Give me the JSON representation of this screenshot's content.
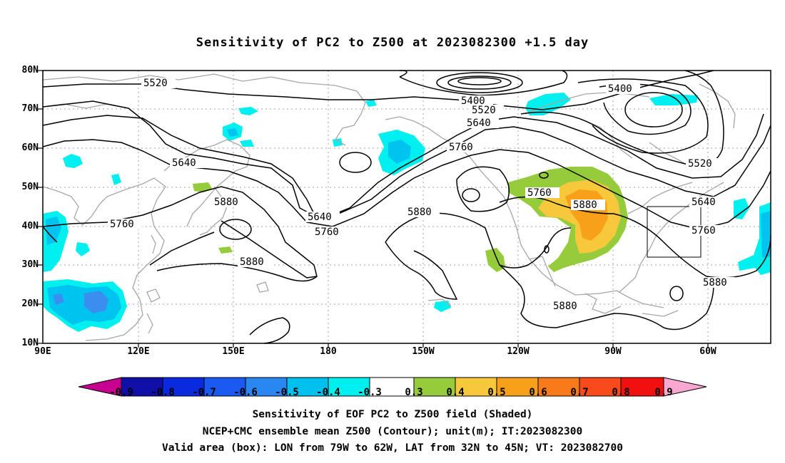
{
  "title": "Sensitivity of PC2 to Z500 at 2023082300 +1.5 day",
  "map": {
    "lat_labels": [
      "80N",
      "70N",
      "60N",
      "50N",
      "40N",
      "30N",
      "20N",
      "10N"
    ],
    "lon_labels": [
      "90E",
      "120E",
      "150E",
      "180",
      "150W",
      "120W",
      "90W",
      "60W"
    ],
    "contour_labels": [
      "5520",
      "5400",
      "5520",
      "5400",
      "5520",
      "5640",
      "5640",
      "5760",
      "5760",
      "5880",
      "5640",
      "5760",
      "5880",
      "5760",
      "5880",
      "5640",
      "5760",
      "5880",
      "5880",
      "5880"
    ],
    "colors": {
      "contour": "#000000",
      "coast": "#a6a6a6",
      "grid": "#a6a6a6",
      "cyan": "#00f0f0",
      "lightblue": "#00c4f0",
      "blue": "#3a8ef0",
      "green": "#96cc3c",
      "yellow": "#f8c83c",
      "orange": "#f8a01a"
    }
  },
  "colorbar": {
    "labels": [
      "-0.9",
      "-0.8",
      "-0.7",
      "-0.6",
      "-0.5",
      "-0.4",
      "-0.3",
      "0.3",
      "0.4",
      "0.5",
      "0.6",
      "0.7",
      "0.8",
      "0.9"
    ],
    "colors": [
      "#1010a8",
      "#0a2ae0",
      "#1a5af0",
      "#2a86f0",
      "#00c0f0",
      "#00f0f0",
      "#ffffff",
      "#96cc3c",
      "#f8c83c",
      "#f8a01a",
      "#f87a1a",
      "#f84a1a",
      "#f01010"
    ],
    "left_end": "#c80090",
    "right_end": "#f8a8d0"
  },
  "captions": [
    "Sensitivity of EOF PC2 to Z500 field (Shaded)",
    "NCEP+CMC ensemble mean Z500 (Contour); unit(m); IT:2023082300",
    "Valid area (box): LON from 79W to 62W, LAT from 32N to 45N; VT: 2023082700"
  ]
}
